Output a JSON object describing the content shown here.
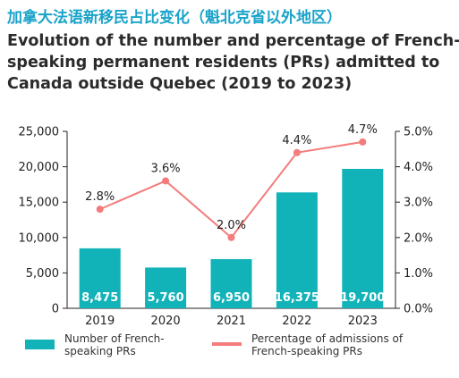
{
  "titles": {
    "zh": "加拿大法语新移民占比变化（魁北克省以外地区）",
    "en_line1": "Evolution of the number and percentage of French-",
    "en_line2": "speaking permanent residents (PRs) admitted to",
    "en_line3": "Canada outside Quebec (2019 to 2023)"
  },
  "legend": {
    "bar_line1": "Number of French-",
    "bar_line2": "speaking PRs",
    "line_line1": "Percentage of admissions of",
    "line_line2": "French-speaking PRs"
  },
  "colors": {
    "bar": "#12b3b8",
    "line": "#f47c7c",
    "axis": "#222222",
    "title_zh": "#1aa3c9"
  },
  "chart_data": {
    "type": "bar+line",
    "categories": [
      "2019",
      "2020",
      "2021",
      "2022",
      "2023"
    ],
    "series": [
      {
        "name": "Number of French-speaking PRs",
        "type": "bar",
        "axis": "left",
        "values": [
          8475,
          5760,
          6950,
          16375,
          19700
        ],
        "labels": [
          "8,475",
          "5,760",
          "6,950",
          "16,375",
          "19,700"
        ]
      },
      {
        "name": "Percentage of admissions of French-speaking PRs",
        "type": "line",
        "axis": "right",
        "values": [
          2.8,
          3.6,
          2.0,
          4.4,
          4.7
        ],
        "labels": [
          "2.8%",
          "3.6%",
          "2.0%",
          "4.4%",
          "4.7%"
        ]
      }
    ],
    "left_axis": {
      "min": 0,
      "max": 25000,
      "ticks": [
        0,
        5000,
        10000,
        15000,
        20000,
        25000
      ],
      "tick_labels": [
        "0",
        "5,000",
        "10,000",
        "15,000",
        "20,000",
        "25,000"
      ]
    },
    "right_axis": {
      "min": 0,
      "max": 5,
      "ticks": [
        0,
        1,
        2,
        3,
        4,
        5
      ],
      "tick_labels": [
        "0.0%",
        "1.0%",
        "2.0%",
        "3.0%",
        "4.0%",
        "5.0%"
      ]
    },
    "grid": false,
    "legend_position": "bottom"
  }
}
